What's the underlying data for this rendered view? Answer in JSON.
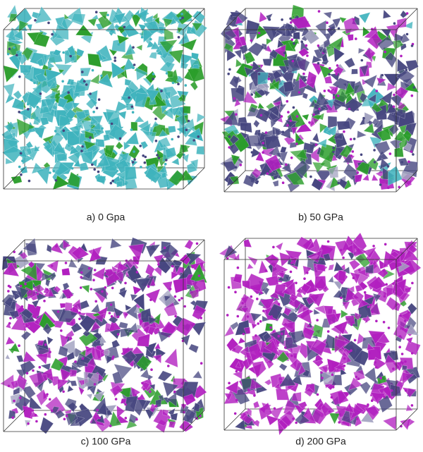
{
  "panels": [
    {
      "caption": "a) 0 Gpa"
    },
    {
      "caption": "b) 50 GPa"
    },
    {
      "caption": "c) 100 GPa"
    },
    {
      "caption": "d) 200 GPa"
    }
  ]
}
